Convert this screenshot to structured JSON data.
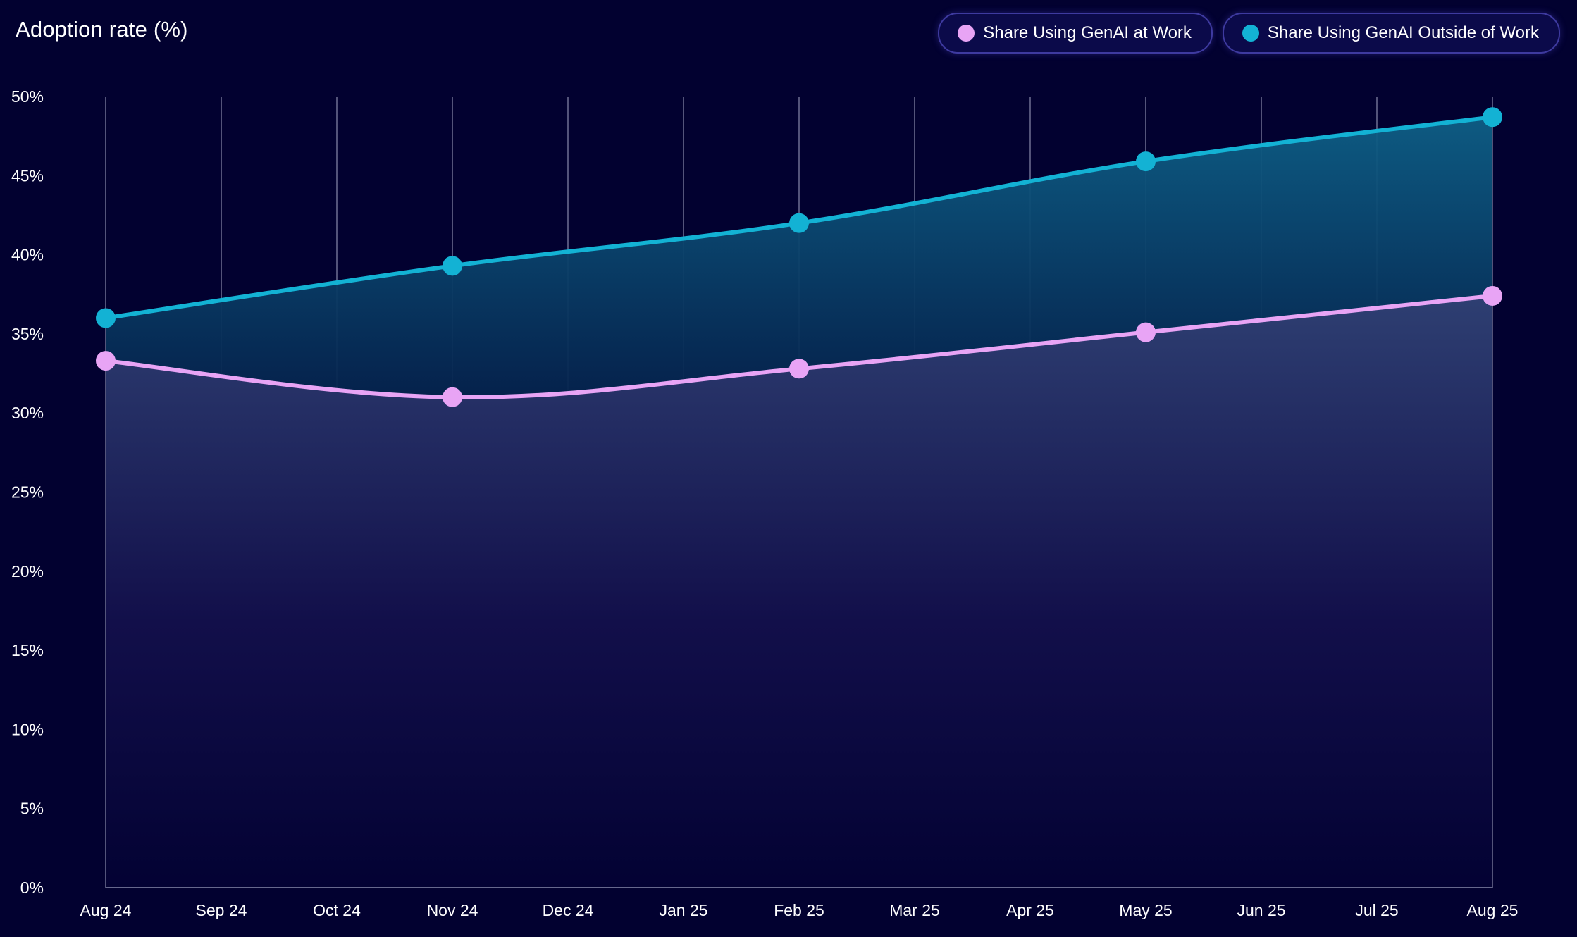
{
  "chart_data": {
    "type": "area",
    "title": "Adoption rate (%)",
    "xlabel": "",
    "ylabel": "",
    "categories": [
      "Aug 24",
      "Sep 24",
      "Oct 24",
      "Nov 24",
      "Dec 24",
      "Jan 25",
      "Feb 25",
      "Mar 25",
      "Apr 25",
      "May 25",
      "Jun 25",
      "Jul 25",
      "Aug 25"
    ],
    "x": [
      "Aug 24",
      "Nov 24",
      "Feb 25",
      "May 25",
      "Aug 25"
    ],
    "series": [
      {
        "name": "Share Using GenAI at Work",
        "color": "#e8a4f5",
        "values": [
          33.3,
          31.0,
          32.8,
          35.1,
          37.4
        ]
      },
      {
        "name": "Share Using GenAI Outside of Work",
        "color": "#13b2d4",
        "values": [
          36.0,
          39.3,
          42.0,
          45.9,
          48.7
        ]
      }
    ],
    "ylim": [
      0,
      50
    ],
    "yticks": [
      "0%",
      "5%",
      "10%",
      "15%",
      "20%",
      "25%",
      "30%",
      "35%",
      "40%",
      "45%",
      "50%"
    ],
    "grid": "vertical",
    "legend_position": "top-right"
  }
}
